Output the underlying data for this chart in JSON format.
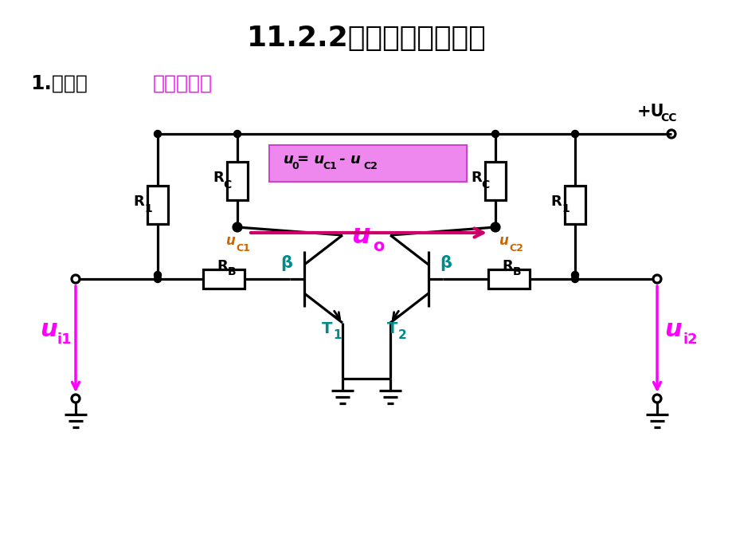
{
  "title": "11.2.2基本型差动放大器",
  "subtitle_black": "1.结构：",
  "subtitle_pink": "对称性结构",
  "bg_color": "#ffffff",
  "lc": "#000000",
  "pink": "#FF00FF",
  "teal": "#008B8B",
  "orange": "#CC6600",
  "box_fill": "#EE88EE",
  "arrow_pink": "#CC0066"
}
